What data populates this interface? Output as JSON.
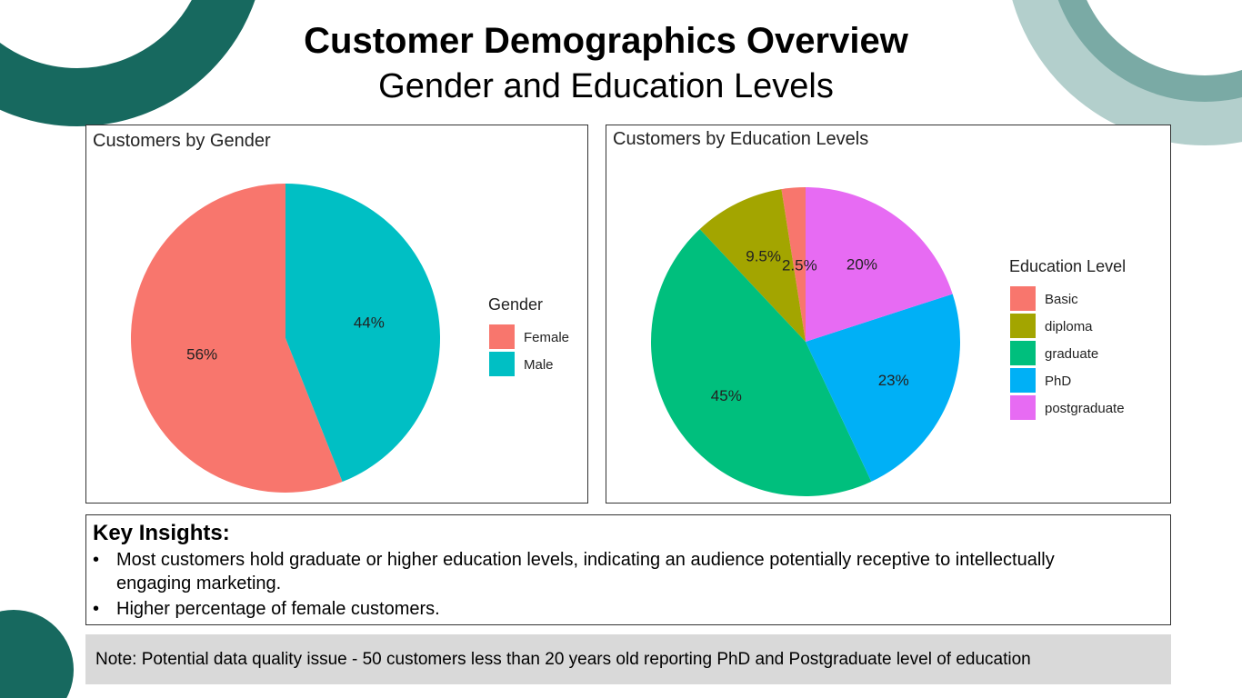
{
  "title": "Customer Demographics Overview",
  "subtitle": "Gender and Education Levels",
  "colors": {
    "deco_dark": "#17695f",
    "deco_light": "#b3cfcc",
    "deco_mid": "#7aaaa5",
    "note_bg": "#d9d9d9"
  },
  "chart_data": [
    {
      "type": "pie",
      "title": "Customers by Gender",
      "legend_title": "Gender",
      "legend_position": "right",
      "slices": [
        {
          "label": "Female",
          "value": 56,
          "display": "56%",
          "color": "#F8766D"
        },
        {
          "label": "Male",
          "value": 44,
          "display": "44%",
          "color": "#00BFC4"
        }
      ]
    },
    {
      "type": "pie",
      "title": "Customers by Education Levels",
      "legend_title": "Education Level",
      "legend_position": "right",
      "slices": [
        {
          "label": "Basic",
          "value": 2.5,
          "display": "2.5%",
          "color": "#F8766D"
        },
        {
          "label": "diploma",
          "value": 9.5,
          "display": "9.5%",
          "color": "#A3A500"
        },
        {
          "label": "graduate",
          "value": 45,
          "display": "45%",
          "color": "#00BF7D"
        },
        {
          "label": "PhD",
          "value": 23,
          "display": "23%",
          "color": "#00B0F6"
        },
        {
          "label": "postgraduate",
          "value": 20,
          "display": "20%",
          "color": "#E76BF3"
        }
      ]
    }
  ],
  "insights": {
    "title": "Key Insights:",
    "bullets": [
      "Most customers hold graduate or higher education levels, indicating an audience potentially receptive to intellectually engaging marketing.",
      "Higher percentage of female customers."
    ]
  },
  "note": "Note: Potential data quality issue - 50 customers less than 20 years old reporting PhD and Postgraduate level of education"
}
